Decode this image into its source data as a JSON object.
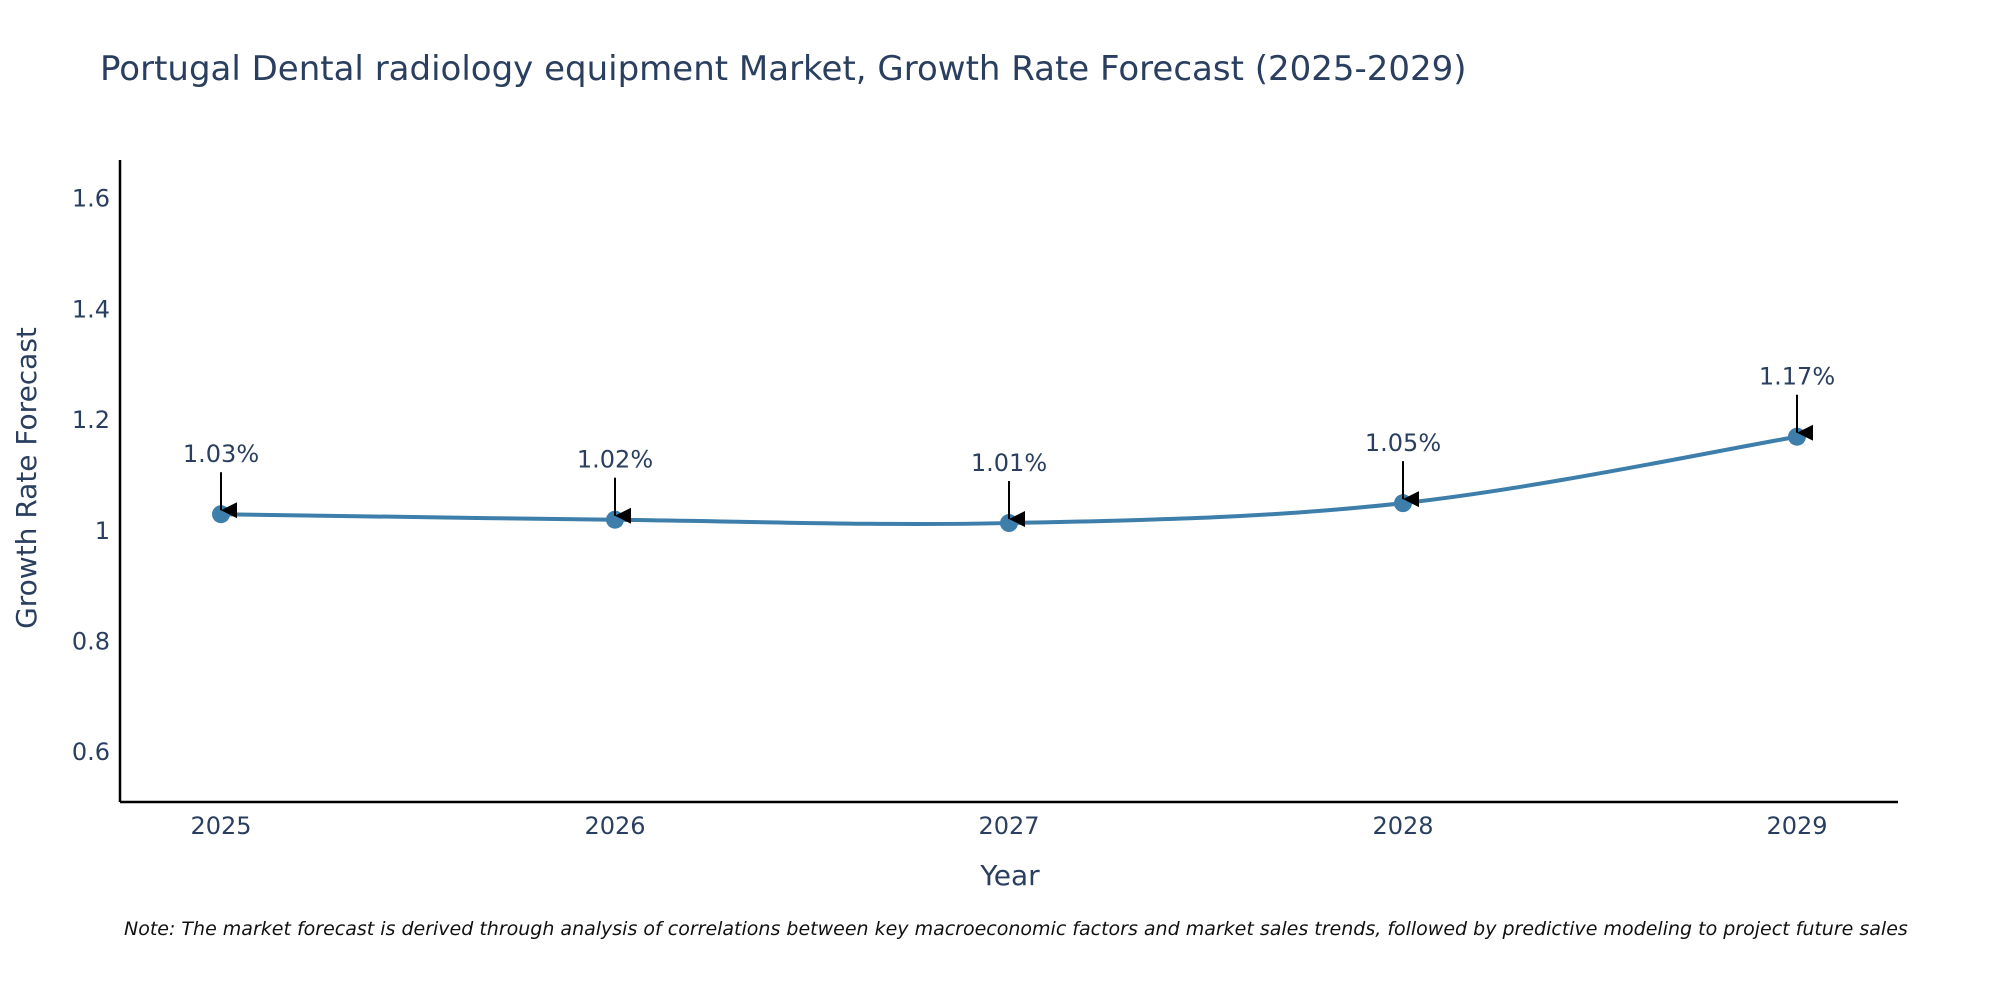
{
  "colors": {
    "line": "#3d7eaa",
    "text": "#2a3f5f",
    "axis": "#000000",
    "arrow": "#000000"
  },
  "chart_data": {
    "type": "line",
    "title": "Portugal Dental radiology equipment Market, Growth Rate Forecast (2025-2029)",
    "xlabel": "Year",
    "ylabel": "Growth Rate Forecast",
    "categories": [
      "2025",
      "2026",
      "2027",
      "2028",
      "2029"
    ],
    "series": [
      {
        "name": "Growth Rate Forecast",
        "values": [
          1.03,
          1.02,
          1.014,
          1.05,
          1.17
        ]
      }
    ],
    "data_labels": [
      "1.03%",
      "1.02%",
      "1.01%",
      "1.05%",
      "1.17%"
    ],
    "ylim": [
      0.51,
      1.67
    ],
    "yticks": [
      0.6,
      0.8,
      1,
      1.2,
      1.4,
      1.6
    ],
    "ytick_labels": [
      "0.6",
      "0.8",
      "1",
      "1.2",
      "1.4",
      "1.6"
    ],
    "grid": false,
    "smooth": true
  },
  "note": "Note: The market forecast is derived through analysis of correlations between key macroeconomic factors and market sales trends, followed by predictive modeling to project future sales"
}
